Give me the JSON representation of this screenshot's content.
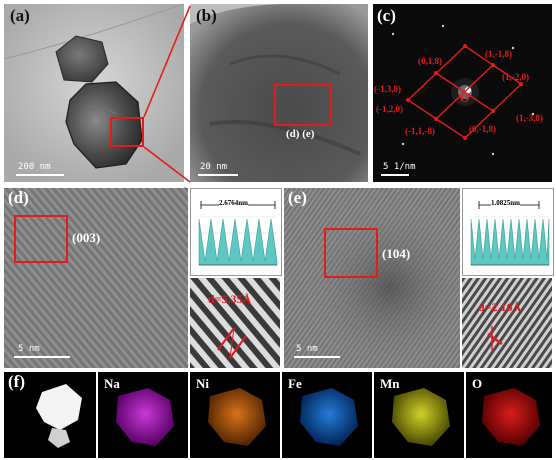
{
  "panels": {
    "a": {
      "label": "(a)",
      "scale": "200 nm"
    },
    "b": {
      "label": "(b)",
      "scale": "20 nm",
      "inset_label": "(d) (e)"
    },
    "c": {
      "label": "(c)",
      "scale": "5 1/nm",
      "indices": [
        "(0,1,8)",
        "(1,-1,8)",
        "(-1,3,8)",
        "(1,-2,0)",
        "(-1,2,0)",
        "(1,-3,8)",
        "(-1,1,-8)",
        "(0,-1,8)"
      ],
      "center_mark": "O"
    },
    "d": {
      "label": "(d)",
      "scale": "5 nm",
      "plane": "(003)",
      "profile_distance": "2.6764nm",
      "d_spacing": "d=5.35Å"
    },
    "e": {
      "label": "(e)",
      "scale": "5 nm",
      "plane": "(104)",
      "profile_distance": "1.0825nm",
      "d_spacing": "d=2.16Å"
    },
    "f": {
      "label": "(f)",
      "elements": [
        "Na",
        "Ni",
        "Fe",
        "Mn",
        "O"
      ]
    }
  },
  "colors": {
    "accent": "#e41a1c",
    "profile_fill": "#5fc7c2",
    "Na": "#c020d0",
    "Ni": "#d06a10",
    "Fe": "#1a6fe0",
    "Mn": "#d0d020",
    "O": "#e01010"
  }
}
